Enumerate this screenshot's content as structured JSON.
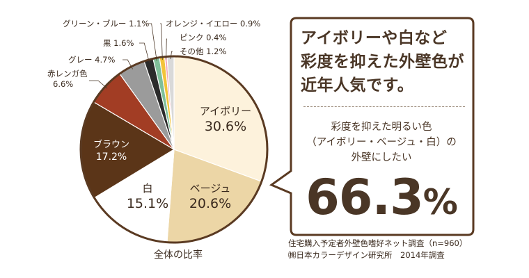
{
  "chart_data": {
    "type": "pie",
    "caption": "全体の比率",
    "slices": [
      {
        "label": "アイボリー",
        "value": 30.6,
        "color": "#fdf2dc",
        "text_color": "#3a2a1e",
        "placement": "inside"
      },
      {
        "label": "ベージュ",
        "value": 20.6,
        "color": "#ecd6a6",
        "text_color": "#3a2a1e",
        "placement": "inside"
      },
      {
        "label": "白",
        "value": 15.1,
        "color": "#ffffff",
        "text_color": "#3a2a1e",
        "placement": "inside"
      },
      {
        "label": "ブラウン",
        "value": 17.2,
        "color": "#5b3518",
        "text_color": "#ffffff",
        "placement": "inside"
      },
      {
        "label": "赤レンガ色",
        "value": 6.6,
        "color": "#a23d24",
        "text_color": "#3a2a1e",
        "placement": "outside"
      },
      {
        "label": "グレー",
        "value": 4.7,
        "color": "#9b9b9b",
        "text_color": "#3a2a1e",
        "placement": "outside"
      },
      {
        "label": "黒",
        "value": 1.6,
        "color": "#2b2b2b",
        "text_color": "#3a2a1e",
        "placement": "outside"
      },
      {
        "label": "グリーン・ブルー",
        "value": 1.1,
        "color": "#7fbf9a",
        "text_color": "#3a2a1e",
        "placement": "outside"
      },
      {
        "label": "オレンジ・イエロー",
        "value": 0.9,
        "color": "#f3c43a",
        "text_color": "#3a2a1e",
        "placement": "outside"
      },
      {
        "label": "ピンク",
        "value": 0.4,
        "color": "#f2a7b8",
        "text_color": "#3a2a1e",
        "placement": "outside"
      },
      {
        "label": "その他",
        "value": 1.2,
        "color": "#d9d9d9",
        "text_color": "#3a2a1e",
        "placement": "outside"
      }
    ]
  },
  "callout": {
    "headline_lines": [
      "アイボリーや白など",
      "彩度を抑えた外壁色が",
      "近年人気です。"
    ],
    "sub_lines": [
      "彩度を抑えた明るい色",
      "（アイボリー・ベージュ・白）の",
      "外壁にしたい"
    ],
    "big_number": "66.3",
    "big_unit": "%"
  },
  "source": {
    "line1": "住宅購入予定者外壁色嗜好ネット調査（n=960）",
    "line2": "㈱日本カラーデザイン研究所　2014年調査"
  },
  "colors": {
    "rim": "#5a3a22",
    "callout_border": "#5a3a22",
    "text": "#4a3626"
  }
}
